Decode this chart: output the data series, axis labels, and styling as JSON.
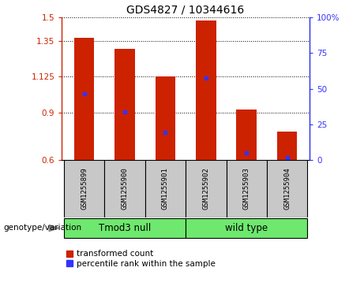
{
  "title": "GDS4827 / 10344616",
  "samples": [
    "GSM1255899",
    "GSM1255900",
    "GSM1255901",
    "GSM1255902",
    "GSM1255903",
    "GSM1255904"
  ],
  "red_bar_top": [
    1.37,
    1.3,
    1.125,
    1.48,
    0.92,
    0.78
  ],
  "blue_marker": [
    1.02,
    0.905,
    0.775,
    1.115,
    0.645,
    0.615
  ],
  "bar_bottom": 0.6,
  "ylim_left": [
    0.6,
    1.5
  ],
  "ylim_right": [
    0,
    100
  ],
  "yticks_left": [
    0.6,
    0.9,
    1.125,
    1.35,
    1.5
  ],
  "ytick_labels_left": [
    "0.6",
    "0.9",
    "1.125",
    "1.35",
    "1.5"
  ],
  "yticks_right": [
    0,
    25,
    50,
    75,
    100
  ],
  "ytick_labels_right": [
    "0",
    "25",
    "50",
    "75",
    "100%"
  ],
  "group_labels": [
    "Tmod3 null",
    "wild type"
  ],
  "group_ranges": [
    [
      0,
      2
    ],
    [
      3,
      5
    ]
  ],
  "group_label_prefix": "genotype/variation",
  "bar_color": "#CC2200",
  "blue_color": "#3333FF",
  "bar_width": 0.5,
  "legend_red": "transformed count",
  "legend_blue": "percentile rank within the sample",
  "background_label_area": "#C8C8C8",
  "group_color": "#6EE86E",
  "left_axis_color": "#CC2200",
  "right_axis_color": "#3333FF",
  "title_fontsize": 10
}
